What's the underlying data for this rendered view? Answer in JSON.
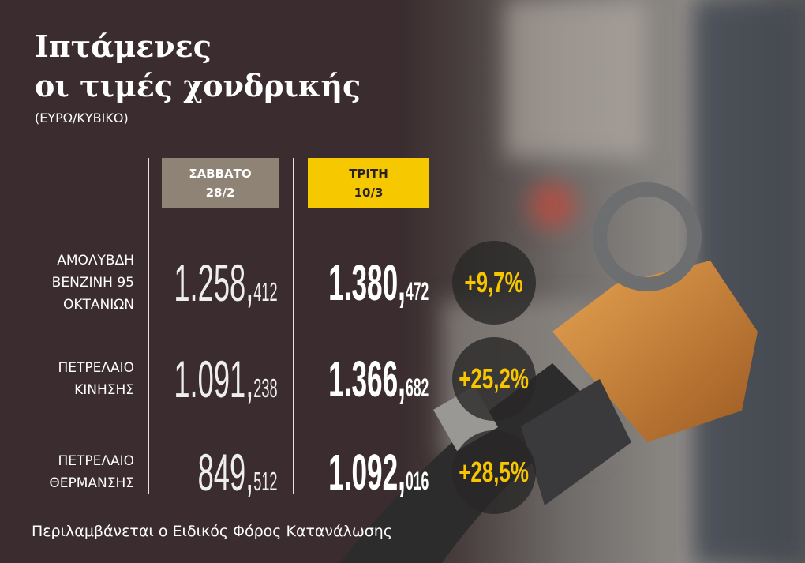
{
  "header": {
    "title": [
      "Ιπτάμενες",
      "οι τιμές χονδρικής"
    ],
    "subtitle": "(ΕΥΡΩ/ΚΥΒΙΚΟ)"
  },
  "table": {
    "columns": [
      [
        "ΣΑΒΒΑΤΟ",
        "28/2"
      ],
      [
        "ΤΡΙΤΗ",
        "10/3"
      ]
    ],
    "rows": [
      {
        "label": [
          "ΑΜΟΛΥΒΔΗ",
          "ΒΕΝΖΙΝΗ 95",
          "ΟΚΤΑΝΙΩΝ"
        ],
        "values": [
          "1.258,412",
          "1.380,472"
        ],
        "change": "+9,7%"
      },
      {
        "label": [
          "ΠΕΤΡΕΛΑΙΟ",
          "ΚΙΝΗΣΗΣ"
        ],
        "values": [
          "1.091,238",
          "1.366,682"
        ],
        "change": "+25,2%"
      },
      {
        "label": [
          "ΠΕΤΡΕΛΑΙΟ",
          "ΘΕΡΜΑΝΣΗΣ"
        ],
        "values": [
          "849,512",
          "1.092,016"
        ],
        "change": "+28,5%"
      }
    ]
  },
  "footer": {
    "note": "Περιλαμβάνεται ο Ειδικός Φόρος Κατανάλωσης"
  }
}
